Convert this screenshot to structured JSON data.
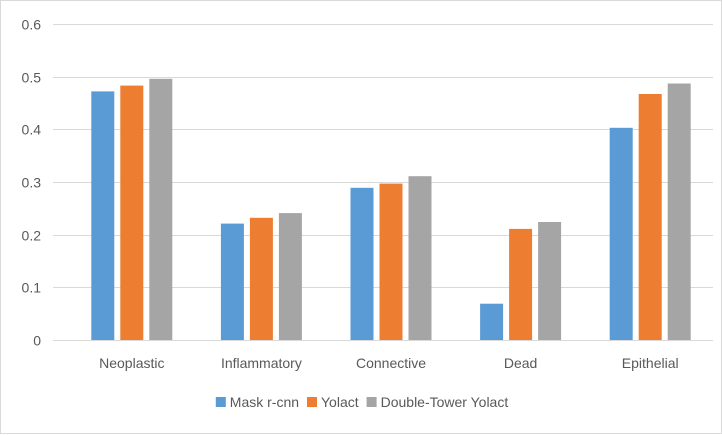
{
  "chart_data": {
    "type": "bar",
    "categories": [
      "Neoplastic",
      "Inflammatory",
      "Connective",
      "Dead",
      "Epithelial"
    ],
    "series": [
      {
        "name": "Mask r-cnn",
        "color": "#5b9bd5",
        "values": [
          0.472,
          0.221,
          0.289,
          0.069,
          0.403
        ]
      },
      {
        "name": "Yolact",
        "color": "#ed7d31",
        "values": [
          0.483,
          0.232,
          0.297,
          0.211,
          0.467
        ]
      },
      {
        "name": "Double-Tower Yolact",
        "color": "#a5a5a5",
        "values": [
          0.496,
          0.241,
          0.311,
          0.224,
          0.487
        ]
      }
    ],
    "yticks": [
      "0",
      "0.1",
      "0.2",
      "0.3",
      "0.4",
      "0.5",
      "0.6"
    ],
    "ylim": [
      0,
      0.6
    ],
    "grid": true,
    "legend_position": "bottom"
  }
}
